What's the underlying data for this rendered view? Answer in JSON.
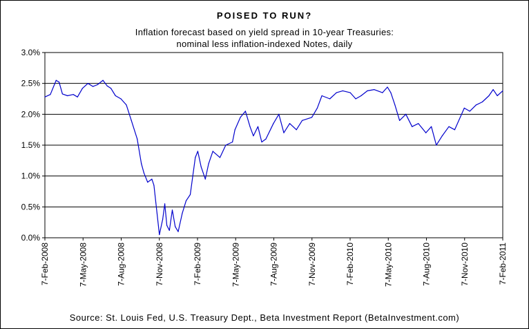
{
  "chart_data": {
    "type": "line",
    "title": "POISED TO RUN?",
    "subtitle": [
      "Inflation forecast based on yield spread in 10-year Treasuries:",
      "nominal less inflation-indexed Notes, daily"
    ],
    "source": "Source: St. Louis Fed, U.S. Treasury Dept., Beta Investment Report (BetaInvestment.com)",
    "xlabel": "",
    "ylabel": "",
    "x_range": [
      "2008-02-07",
      "2011-02-07"
    ],
    "ylim": [
      0,
      3.0
    ],
    "y_ticks": [
      "0.0%",
      "0.5%",
      "1.0%",
      "1.5%",
      "2.0%",
      "2.5%",
      "3.0%"
    ],
    "x_ticks": [
      "7-Feb-2008",
      "7-May-2008",
      "7-Aug-2008",
      "7-Nov-2008",
      "7-Feb-2009",
      "7-May-2009",
      "7-Aug-2009",
      "7-Nov-2009",
      "7-Feb-2010",
      "7-May-2010",
      "7-Aug-2010",
      "7-Nov-2010",
      "7-Feb-2011"
    ],
    "grid": "horizontal",
    "legend": "none",
    "line_color": "#0000cc",
    "series": [
      {
        "x": [
          "2008-02-07",
          "2008-02-20",
          "2008-03-05",
          "2008-03-12",
          "2008-03-20",
          "2008-04-01",
          "2008-04-15",
          "2008-04-25",
          "2008-05-07",
          "2008-05-20",
          "2008-06-01",
          "2008-06-12",
          "2008-06-25",
          "2008-07-05",
          "2008-07-14",
          "2008-07-25",
          "2008-08-07",
          "2008-08-20",
          "2008-09-01",
          "2008-09-15",
          "2008-09-25",
          "2008-10-01",
          "2008-10-10",
          "2008-10-20",
          "2008-10-25",
          "2008-11-07",
          "2008-11-15",
          "2008-11-20",
          "2008-11-25",
          "2008-12-01",
          "2008-12-08",
          "2008-12-15",
          "2008-12-22",
          "2009-01-01",
          "2009-01-10",
          "2009-01-20",
          "2009-02-01",
          "2009-02-07",
          "2009-02-15",
          "2009-02-25",
          "2009-03-05",
          "2009-03-15",
          "2009-04-01",
          "2009-04-15",
          "2009-05-01",
          "2009-05-07",
          "2009-05-20",
          "2009-06-01",
          "2009-06-12",
          "2009-06-20",
          "2009-07-01",
          "2009-07-10",
          "2009-07-20",
          "2009-08-07",
          "2009-08-20",
          "2009-09-01",
          "2009-09-15",
          "2009-10-01",
          "2009-10-15",
          "2009-11-07",
          "2009-11-20",
          "2009-12-01",
          "2009-12-20",
          "2010-01-05",
          "2010-01-20",
          "2010-02-07",
          "2010-02-20",
          "2010-03-05",
          "2010-03-20",
          "2010-04-05",
          "2010-04-25",
          "2010-05-07",
          "2010-05-15",
          "2010-05-25",
          "2010-06-05",
          "2010-06-20",
          "2010-07-05",
          "2010-07-20",
          "2010-08-07",
          "2010-08-20",
          "2010-09-01",
          "2010-09-15",
          "2010-10-01",
          "2010-10-15",
          "2010-11-07",
          "2010-11-20",
          "2010-12-05",
          "2010-12-20",
          "2011-01-05",
          "2011-01-15",
          "2011-01-25",
          "2011-02-07"
        ],
        "values": [
          2.28,
          2.32,
          2.55,
          2.52,
          2.33,
          2.3,
          2.32,
          2.28,
          2.42,
          2.5,
          2.45,
          2.48,
          2.55,
          2.46,
          2.42,
          2.3,
          2.25,
          2.15,
          1.9,
          1.6,
          1.2,
          1.05,
          0.9,
          0.95,
          0.85,
          0.05,
          0.3,
          0.55,
          0.2,
          0.12,
          0.45,
          0.18,
          0.1,
          0.4,
          0.6,
          0.7,
          1.3,
          1.4,
          1.15,
          0.95,
          1.2,
          1.4,
          1.3,
          1.5,
          1.55,
          1.75,
          1.95,
          2.05,
          1.8,
          1.65,
          1.8,
          1.55,
          1.6,
          1.85,
          2.0,
          1.7,
          1.85,
          1.75,
          1.9,
          1.95,
          2.1,
          2.3,
          2.25,
          2.35,
          2.38,
          2.35,
          2.25,
          2.3,
          2.38,
          2.4,
          2.35,
          2.44,
          2.35,
          2.15,
          1.9,
          2.0,
          1.8,
          1.85,
          1.7,
          1.8,
          1.5,
          1.65,
          1.8,
          1.75,
          2.1,
          2.05,
          2.15,
          2.2,
          2.3,
          2.4,
          2.3,
          2.38
        ]
      }
    ]
  }
}
